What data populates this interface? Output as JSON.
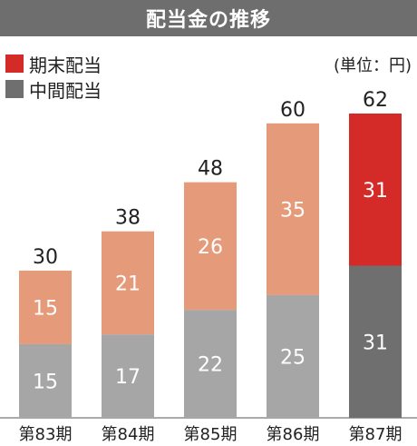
{
  "title": "配当金の推移",
  "unit_label": "(単位：円)",
  "legend": [
    {
      "label": "期末配当",
      "color": "#d42a28"
    },
    {
      "label": "中間配当",
      "color": "#6f6f6f"
    }
  ],
  "chart_data": {
    "type": "bar",
    "stacked": true,
    "title": "配当金の推移",
    "categories": [
      "第83期",
      "第84期",
      "第85期",
      "第86期",
      "第87期"
    ],
    "series": [
      {
        "name": "中間配当",
        "values": [
          15,
          17,
          22,
          25,
          31
        ]
      },
      {
        "name": "期末配当",
        "values": [
          15,
          21,
          26,
          35,
          31
        ]
      }
    ],
    "totals": [
      30,
      38,
      48,
      60,
      62
    ],
    "ylim": [
      0,
      62
    ],
    "grid": false,
    "legend_position": "top-left",
    "colors": {
      "interim_past": "#a6a6a6",
      "year_end_past": "#e59a7a",
      "interim_latest": "#6f6f6f",
      "year_end_latest": "#d42a28"
    }
  }
}
